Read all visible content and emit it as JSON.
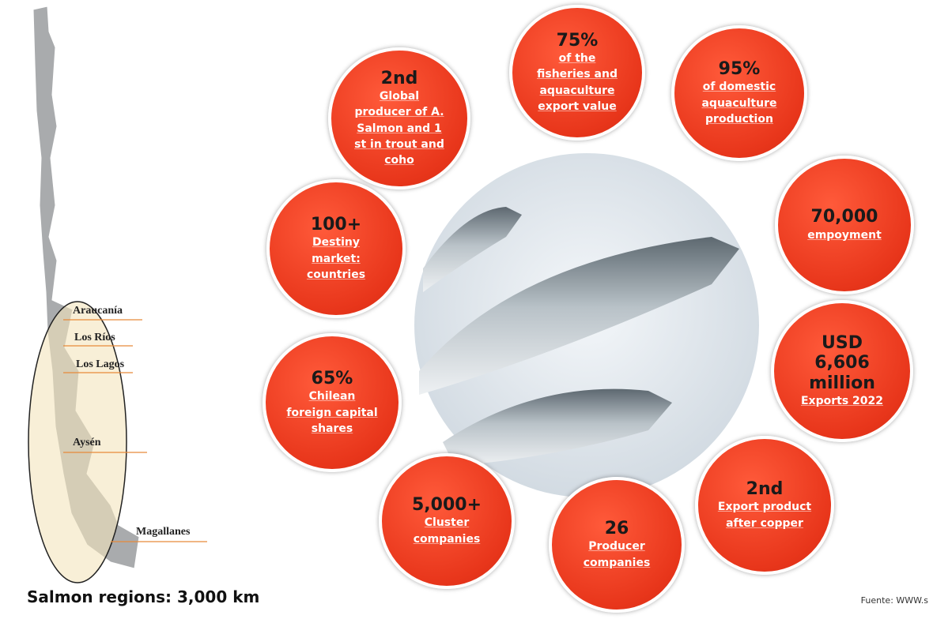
{
  "map": {
    "regions": [
      "Araucanía",
      "Los Ríos",
      "Los Lagos",
      "Aysén",
      "Magallanes"
    ],
    "caption": "Salmon regions: 3,000 km"
  },
  "facts": [
    {
      "headline": "2nd",
      "text": "Global producer of A. Salmon and 1 st in trout and coho"
    },
    {
      "headline": "75%",
      "text": "of the fisheries and aquaculture export value"
    },
    {
      "headline": "95%",
      "text": "of domestic aquaculture production"
    },
    {
      "headline": "70,000",
      "text": "empoyment"
    },
    {
      "headline": "USD 6,606 million",
      "text": "Exports 2022"
    },
    {
      "headline": "2nd",
      "text": "Export product after copper"
    },
    {
      "headline": "26",
      "text": "Producer companies"
    },
    {
      "headline": "5,000+",
      "text": "Cluster companies"
    },
    {
      "headline": "65%",
      "text": "Chilean foreign capital shares"
    },
    {
      "headline": "100+",
      "text": "Destiny market: countries"
    }
  ],
  "source": "Fuente: WWW.s"
}
